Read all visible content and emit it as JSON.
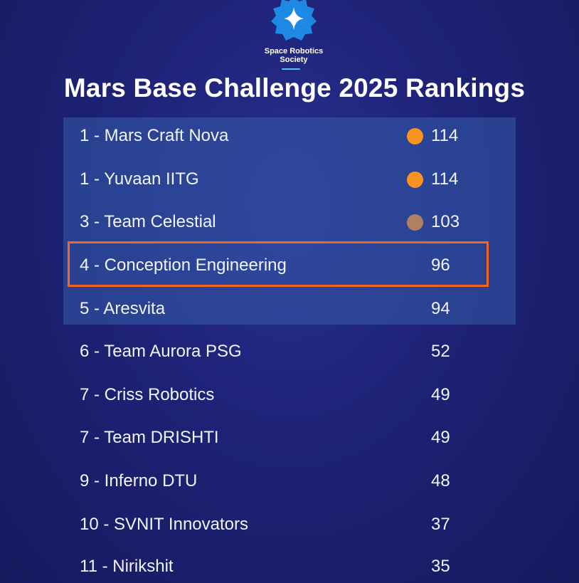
{
  "header": {
    "org_name": "Space Robotics Society",
    "title": "Mars Base Challenge 2025 Rankings",
    "logo_icon": "sparkle-gear-logo-icon",
    "logo_color": "#1e90ff",
    "accent_color": "#4fc3f7"
  },
  "rankings": [
    {
      "label": "1 - Mars Craft Nova",
      "score": "114",
      "medal": "gold",
      "medal_color": "#f7931e"
    },
    {
      "label": "1 - Yuvaan IITG",
      "score": "114",
      "medal": "gold",
      "medal_color": "#f7931e"
    },
    {
      "label": "3 - Team Celestial",
      "score": "103",
      "medal": "bronze",
      "medal_color": "#b08060"
    },
    {
      "label": "4 - Conception Engineering",
      "score": "96",
      "highlighted": true,
      "highlight_color": "#f26522"
    },
    {
      "label": "5 - Aresvita",
      "score": "94"
    },
    {
      "label": "6 - Team Aurora PSG",
      "score": "52"
    },
    {
      "label": "7 - Criss Robotics",
      "score": "49"
    },
    {
      "label": "7 - Team DRISHTI",
      "score": "49"
    },
    {
      "label": "9 - Inferno DTU",
      "score": "48"
    },
    {
      "label": "10 - SVNIT Innovators",
      "score": "37"
    },
    {
      "label": "11 - Nirikshit",
      "score": "35"
    }
  ]
}
